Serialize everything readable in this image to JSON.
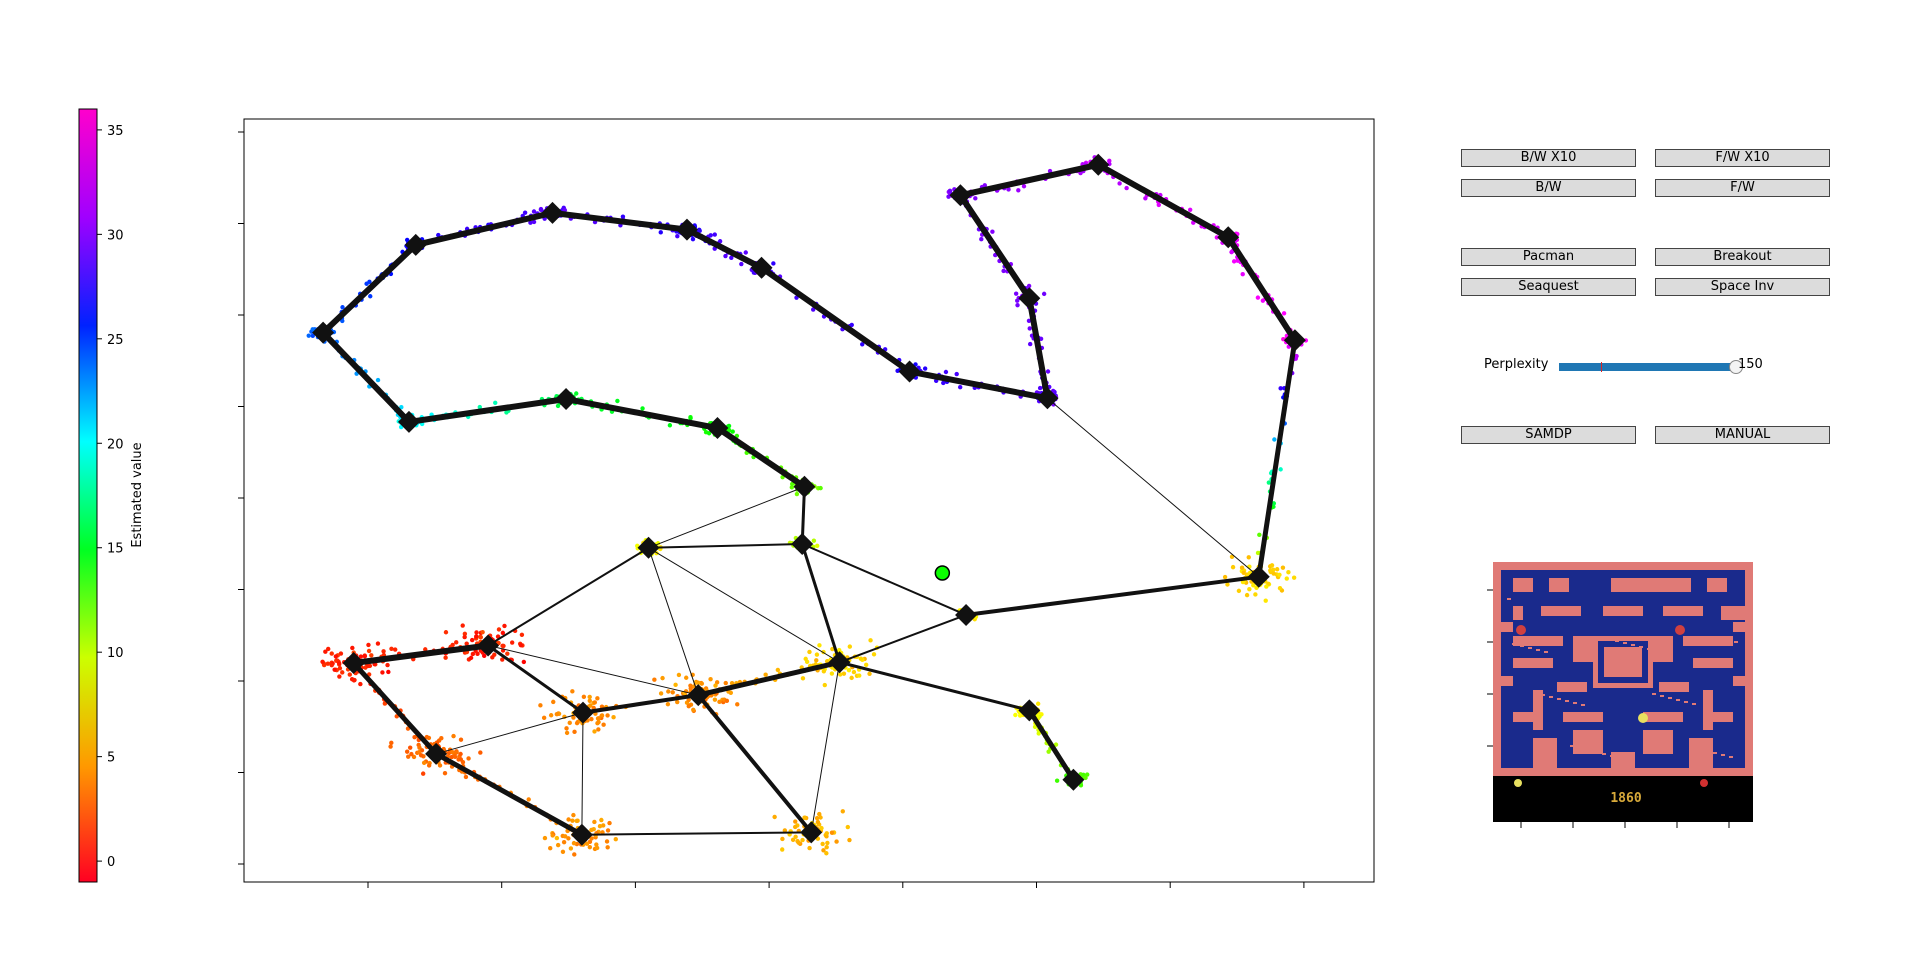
{
  "colorbar": {
    "label": "Estimated value",
    "ticks": [
      "35",
      "30",
      "25",
      "20",
      "15",
      "10",
      "5",
      "0"
    ],
    "range": [
      -1,
      36
    ]
  },
  "controls": {
    "bw_x10": "B/W X10",
    "fw_x10": "F/W X10",
    "bw": "B/W",
    "fw": "F/W",
    "pacman": "Pacman",
    "breakout": "Breakout",
    "seaquest": "Seaquest",
    "space_inv": "Space Inv",
    "perplexity_label": "Perplexity",
    "perplexity_value": "150",
    "perplexity_fraction": 1.0,
    "samdp": "SAMDP",
    "manual": "MANUAL"
  },
  "game": {
    "score": "1860"
  },
  "colors": {
    "slider": "#1f77b4",
    "button_bg": "#dcdcdc",
    "maze_wall": "#e07a76",
    "maze_floor": "#1a2a8c"
  },
  "chart_data": {
    "type": "scatter",
    "title": "",
    "xlabel": "",
    "ylabel": "",
    "grid": false,
    "nodes": [
      {
        "id": 0,
        "x": 0.07,
        "y": 0.72,
        "value": 25
      },
      {
        "id": 1,
        "x": 0.152,
        "y": 0.835,
        "value": 28
      },
      {
        "id": 2,
        "x": 0.273,
        "y": 0.877,
        "value": 30
      },
      {
        "id": 3,
        "x": 0.392,
        "y": 0.855,
        "value": 29
      },
      {
        "id": 4,
        "x": 0.458,
        "y": 0.805,
        "value": 30
      },
      {
        "id": 5,
        "x": 0.589,
        "y": 0.669,
        "value": 29
      },
      {
        "id": 6,
        "x": 0.711,
        "y": 0.634,
        "value": 30
      },
      {
        "id": 7,
        "x": 0.695,
        "y": 0.765,
        "value": 31
      },
      {
        "id": 8,
        "x": 0.634,
        "y": 0.9,
        "value": 31
      },
      {
        "id": 9,
        "x": 0.756,
        "y": 0.94,
        "value": 33
      },
      {
        "id": 10,
        "x": 0.871,
        "y": 0.845,
        "value": 34
      },
      {
        "id": 11,
        "x": 0.93,
        "y": 0.71,
        "value": 35
      },
      {
        "id": 12,
        "x": 0.898,
        "y": 0.4,
        "value": 5
      },
      {
        "id": 13,
        "x": 0.146,
        "y": 0.603,
        "value": 21
      },
      {
        "id": 14,
        "x": 0.285,
        "y": 0.633,
        "value": 15
      },
      {
        "id": 15,
        "x": 0.419,
        "y": 0.595,
        "value": 13
      },
      {
        "id": 16,
        "x": 0.496,
        "y": 0.518,
        "value": 10
      },
      {
        "id": 17,
        "x": 0.494,
        "y": 0.443,
        "value": 8
      },
      {
        "id": 18,
        "x": 0.358,
        "y": 0.438,
        "value": 6
      },
      {
        "id": 19,
        "x": 0.639,
        "y": 0.35,
        "value": 6
      },
      {
        "id": 20,
        "x": 0.527,
        "y": 0.288,
        "value": 5
      },
      {
        "id": 21,
        "x": 0.216,
        "y": 0.31,
        "value": 0
      },
      {
        "id": 22,
        "x": 0.097,
        "y": 0.287,
        "value": 0
      },
      {
        "id": 23,
        "x": 0.3,
        "y": 0.222,
        "value": 3
      },
      {
        "id": 24,
        "x": 0.402,
        "y": 0.245,
        "value": 3
      },
      {
        "id": 25,
        "x": 0.17,
        "y": 0.168,
        "value": 2
      },
      {
        "id": 26,
        "x": 0.299,
        "y": 0.062,
        "value": 3
      },
      {
        "id": 27,
        "x": 0.502,
        "y": 0.065,
        "value": 4
      },
      {
        "id": 28,
        "x": 0.695,
        "y": 0.225,
        "value": 6
      },
      {
        "id": 29,
        "x": 0.734,
        "y": 0.134,
        "value": 11
      }
    ],
    "edges": [
      {
        "from": 0,
        "to": 1,
        "w": 6
      },
      {
        "from": 1,
        "to": 2,
        "w": 6
      },
      {
        "from": 2,
        "to": 3,
        "w": 6
      },
      {
        "from": 3,
        "to": 4,
        "w": 6
      },
      {
        "from": 4,
        "to": 5,
        "w": 6
      },
      {
        "from": 5,
        "to": 6,
        "w": 6
      },
      {
        "from": 6,
        "to": 7,
        "w": 6
      },
      {
        "from": 7,
        "to": 8,
        "w": 6
      },
      {
        "from": 8,
        "to": 9,
        "w": 6
      },
      {
        "from": 9,
        "to": 10,
        "w": 6
      },
      {
        "from": 10,
        "to": 11,
        "w": 6
      },
      {
        "from": 11,
        "to": 12,
        "w": 5
      },
      {
        "from": 0,
        "to": 13,
        "w": 6
      },
      {
        "from": 13,
        "to": 14,
        "w": 6
      },
      {
        "from": 14,
        "to": 15,
        "w": 6
      },
      {
        "from": 15,
        "to": 16,
        "w": 6
      },
      {
        "from": 16,
        "to": 17,
        "w": 3
      },
      {
        "from": 17,
        "to": 18,
        "w": 2
      },
      {
        "from": 16,
        "to": 18,
        "w": 1
      },
      {
        "from": 17,
        "to": 19,
        "w": 2
      },
      {
        "from": 17,
        "to": 20,
        "w": 3
      },
      {
        "from": 18,
        "to": 21,
        "w": 2
      },
      {
        "from": 18,
        "to": 24,
        "w": 1
      },
      {
        "from": 19,
        "to": 12,
        "w": 4
      },
      {
        "from": 6,
        "to": 12,
        "w": 1
      },
      {
        "from": 20,
        "to": 19,
        "w": 2
      },
      {
        "from": 22,
        "to": 21,
        "w": 6
      },
      {
        "from": 21,
        "to": 23,
        "w": 3
      },
      {
        "from": 21,
        "to": 24,
        "w": 1
      },
      {
        "from": 22,
        "to": 25,
        "w": 5
      },
      {
        "from": 25,
        "to": 26,
        "w": 5
      },
      {
        "from": 23,
        "to": 24,
        "w": 4
      },
      {
        "from": 24,
        "to": 20,
        "w": 5
      },
      {
        "from": 20,
        "to": 28,
        "w": 3
      },
      {
        "from": 28,
        "to": 29,
        "w": 5
      },
      {
        "from": 26,
        "to": 27,
        "w": 2
      },
      {
        "from": 24,
        "to": 27,
        "w": 4
      },
      {
        "from": 20,
        "to": 27,
        "w": 1
      },
      {
        "from": 23,
        "to": 26,
        "w": 1
      },
      {
        "from": 25,
        "to": 23,
        "w": 1
      },
      {
        "from": 18,
        "to": 20,
        "w": 1
      }
    ],
    "current_state": {
      "x": 0.618,
      "y": 0.405,
      "value": 13
    }
  }
}
